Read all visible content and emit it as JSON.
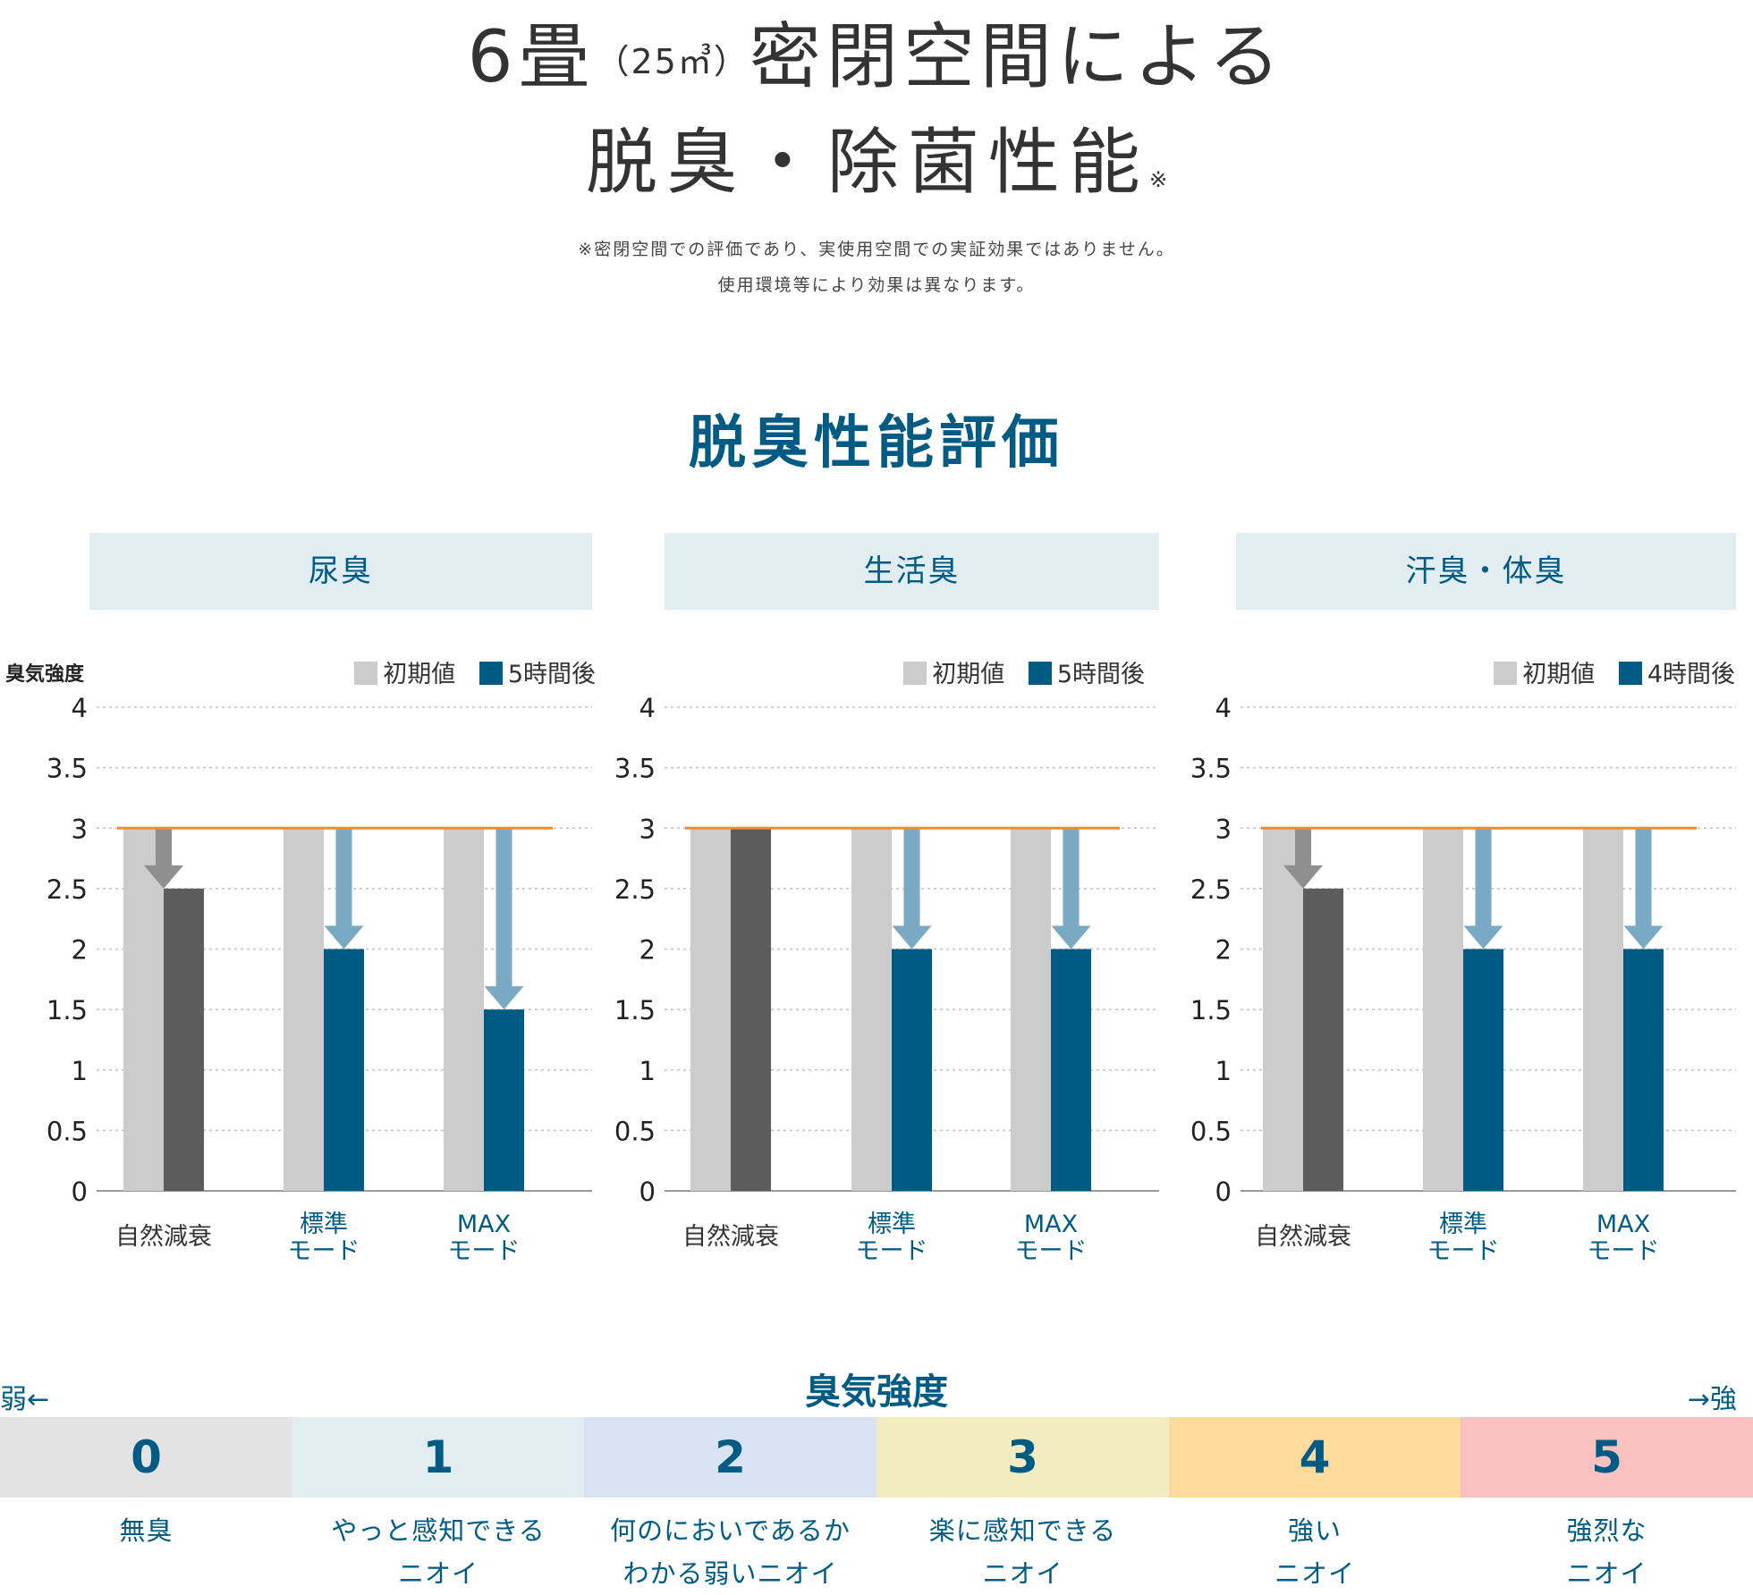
{
  "header": {
    "title_line1_a": "6畳",
    "title_line1_small": "（25㎥）",
    "title_line1_b": "密閉空間による",
    "title_line2": "脱臭・除菌性能",
    "title_line2_mark": "※",
    "note_line1": "※密閉空間での評価であり、実使用空間での実証効果ではありません。",
    "note_line2": "使用環境等により効果は異なります。"
  },
  "section_title": "脱臭性能評価",
  "y_axis_title": "臭気強度",
  "colors": {
    "initial": "#cccccc",
    "natural_after": "#5c5c5c",
    "mode_after": "#005b84",
    "baseline": "#f08c2c",
    "arrow_gray": "#8f8f8f",
    "arrow_blue": "#7aa9c4",
    "header_bg": "#e2edf2",
    "accent_text": "#005b84"
  },
  "chart_data": [
    {
      "type": "bar",
      "title": "尿臭",
      "categories": [
        "自然減衰",
        "標準\nモード",
        "MAXモード"
      ],
      "category_lines": [
        [
          "自然減衰"
        ],
        [
          "標準",
          "モード"
        ],
        [
          "MAX",
          "モード"
        ]
      ],
      "series": [
        {
          "name": "初期値",
          "values": [
            3,
            3,
            3
          ]
        },
        {
          "name": "5時間後",
          "values": [
            2.5,
            2,
            1.5
          ]
        }
      ],
      "ylim": [
        0,
        4
      ],
      "yticks": [
        "0",
        "0.5",
        "1",
        "1.5",
        "2",
        "2.5",
        "3",
        "3.5",
        "4"
      ],
      "baseline": 3,
      "grid": true,
      "legend": "top-right"
    },
    {
      "type": "bar",
      "title": "生活臭",
      "categories": [
        "自然減衰",
        "標準\nモード",
        "MAXモード"
      ],
      "category_lines": [
        [
          "自然減衰"
        ],
        [
          "標準",
          "モード"
        ],
        [
          "MAX",
          "モード"
        ]
      ],
      "series": [
        {
          "name": "初期値",
          "values": [
            3,
            3,
            3
          ]
        },
        {
          "name": "5時間後",
          "values": [
            3,
            2,
            2
          ]
        }
      ],
      "ylim": [
        0,
        4
      ],
      "yticks": [
        "0",
        "0.5",
        "1",
        "1.5",
        "2",
        "2.5",
        "3",
        "3.5",
        "4"
      ],
      "baseline": 3,
      "grid": true,
      "legend": "top-right"
    },
    {
      "type": "bar",
      "title": "汗臭・体臭",
      "categories": [
        "自然減衰",
        "標準\nモード",
        "MAXモード"
      ],
      "category_lines": [
        [
          "自然減衰"
        ],
        [
          "標準",
          "モード"
        ],
        [
          "MAX",
          "モード"
        ]
      ],
      "series": [
        {
          "name": "初期値",
          "values": [
            3,
            3,
            3
          ]
        },
        {
          "name": "4時間後",
          "values": [
            2.5,
            2,
            2
          ]
        }
      ],
      "ylim": [
        0,
        4
      ],
      "yticks": [
        "0",
        "0.5",
        "1",
        "1.5",
        "2",
        "2.5",
        "3",
        "3.5",
        "4"
      ],
      "baseline": 3,
      "grid": true,
      "legend": "top-right"
    }
  ],
  "scale": {
    "label": "臭気強度",
    "weak_label": "弱←",
    "strong_label": "→強",
    "levels": [
      {
        "value": "0",
        "color": "#e3e3e3",
        "desc1": "無臭",
        "desc2": ""
      },
      {
        "value": "1",
        "color": "#e2edf2",
        "desc1": "やっと感知できる",
        "desc2": "ニオイ"
      },
      {
        "value": "2",
        "color": "#d9e2f3",
        "desc1": "何のにおいであるか",
        "desc2": "わかる弱いニオイ"
      },
      {
        "value": "3",
        "color": "#f2edc0",
        "desc1": "楽に感知できる",
        "desc2": "ニオイ"
      },
      {
        "value": "4",
        "color": "#fddb9c",
        "desc1": "強い",
        "desc2": "ニオイ"
      },
      {
        "value": "5",
        "color": "#f9c1c0",
        "desc1": "強烈な",
        "desc2": "ニオイ"
      }
    ]
  }
}
